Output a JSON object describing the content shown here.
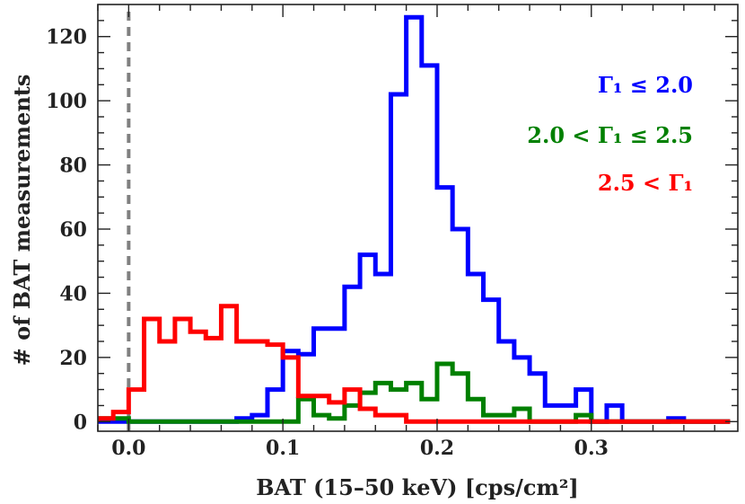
{
  "chart_data": {
    "type": "histogram",
    "xlabel": "BAT (15–50 keV) [cps/cm²]",
    "ylabel": "# of BAT measurements",
    "xlim": [
      -0.02,
      0.395
    ],
    "ylim": [
      -3,
      130
    ],
    "x_ticks": [
      0.0,
      0.1,
      0.2,
      0.3
    ],
    "x_tick_labels": [
      "0.0",
      "0.1",
      "0.2",
      "0.3"
    ],
    "y_ticks": [
      0,
      20,
      40,
      60,
      80,
      100,
      120
    ],
    "y_tick_labels": [
      "0",
      "20",
      "40",
      "60",
      "80",
      "100",
      "120"
    ],
    "bin_edges": [
      -0.02,
      -0.01,
      0.0,
      0.01,
      0.02,
      0.03,
      0.04,
      0.05,
      0.06,
      0.07,
      0.08,
      0.09,
      0.1,
      0.11,
      0.12,
      0.13,
      0.14,
      0.15,
      0.16,
      0.17,
      0.18,
      0.19,
      0.2,
      0.21,
      0.22,
      0.23,
      0.24,
      0.25,
      0.26,
      0.27,
      0.28,
      0.29,
      0.3,
      0.31,
      0.32,
      0.33,
      0.34,
      0.35,
      0.36,
      0.37,
      0.38,
      0.39
    ],
    "vline": {
      "x": 0.0,
      "color": "#808080",
      "style": "dashed"
    },
    "series": [
      {
        "name": "Γ₁ ≤ 2.0",
        "color": "#0000ff",
        "counts": [
          0,
          0,
          0,
          0,
          0,
          0,
          0,
          0,
          0,
          1,
          2,
          10,
          22,
          21,
          29,
          29,
          42,
          52,
          46,
          102,
          126,
          111,
          73,
          60,
          46,
          38,
          25,
          20,
          15,
          5,
          5,
          10,
          0,
          5,
          0,
          0,
          0,
          1,
          0,
          0,
          0
        ]
      },
      {
        "name": "2.0 < Γ₁ ≤ 2.5",
        "color": "#008000",
        "counts": [
          1,
          1,
          0,
          0,
          0,
          0,
          0,
          0,
          0,
          0,
          0,
          0,
          0,
          7,
          2,
          1,
          5,
          9,
          12,
          10,
          12,
          7,
          18,
          15,
          7,
          2,
          2,
          4,
          0,
          0,
          0,
          2,
          0,
          0,
          0,
          0,
          0,
          0,
          0,
          0,
          0
        ]
      },
      {
        "name": "2.5 < Γ₁",
        "color": "#ff0000",
        "counts": [
          1,
          3,
          10,
          32,
          25,
          32,
          28,
          26,
          36,
          25,
          25,
          24,
          20,
          8,
          8,
          6,
          10,
          4,
          2,
          2,
          0,
          0,
          0,
          0,
          0,
          0,
          0,
          0,
          0,
          0,
          0,
          0,
          0,
          0,
          0,
          0,
          0,
          0,
          0,
          0,
          0
        ]
      }
    ],
    "legend": {
      "placement": "top-right",
      "entries": [
        {
          "label": "Γ₁ ≤ 2.0",
          "color": "#0000ff"
        },
        {
          "label": "2.0 < Γ₁ ≤ 2.5",
          "color": "#008000"
        },
        {
          "label": "2.5 < Γ₁",
          "color": "#ff0000"
        }
      ]
    }
  }
}
